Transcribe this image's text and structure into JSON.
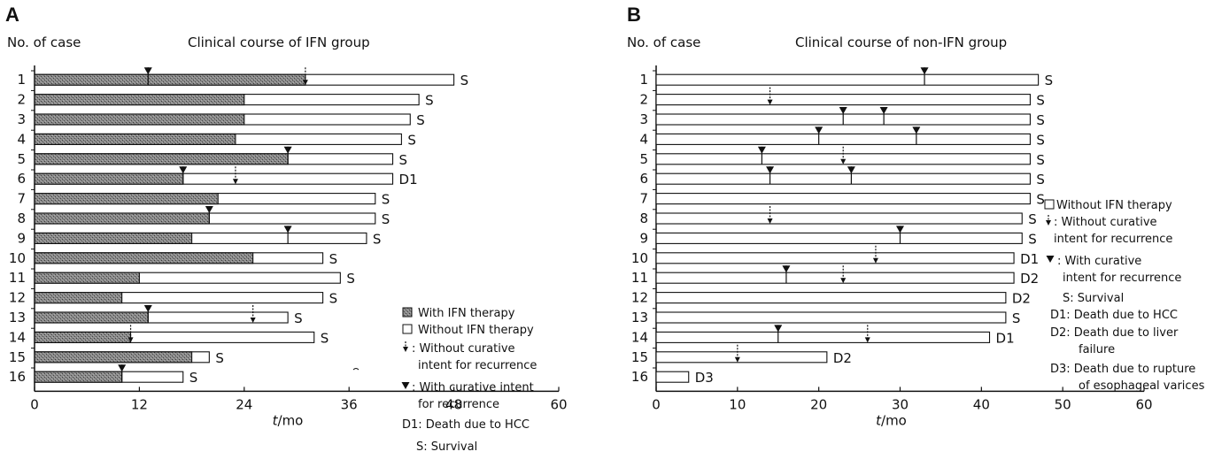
{
  "chart_data": [
    {
      "type": "bar",
      "panel": "A",
      "title": "Clinical course of IFN group",
      "ylabel": "No. of case",
      "xlabel": "t/mo",
      "xlim": [
        0,
        60
      ],
      "xticks": [
        0,
        12,
        24,
        36,
        48,
        60
      ],
      "cases": [
        {
          "label": "1",
          "ifn": 31,
          "total": 48,
          "outcome": "S",
          "without_curative": [
            31
          ],
          "with_curative": [
            13
          ]
        },
        {
          "label": "2",
          "ifn": 24,
          "total": 44,
          "outcome": "S",
          "without_curative": [],
          "with_curative": []
        },
        {
          "label": "3",
          "ifn": 24,
          "total": 43,
          "outcome": "S",
          "without_curative": [],
          "with_curative": []
        },
        {
          "label": "4",
          "ifn": 23,
          "total": 42,
          "outcome": "S",
          "without_curative": [],
          "with_curative": []
        },
        {
          "label": "5",
          "ifn": 29,
          "total": 41,
          "outcome": "S",
          "without_curative": [],
          "with_curative": [
            29
          ]
        },
        {
          "label": "6",
          "ifn": 17,
          "total": 41,
          "outcome": "D1",
          "without_curative": [
            23
          ],
          "with_curative": [
            17
          ]
        },
        {
          "label": "7",
          "ifn": 21,
          "total": 39,
          "outcome": "S",
          "without_curative": [],
          "with_curative": []
        },
        {
          "label": "8",
          "ifn": 20,
          "total": 39,
          "outcome": "S",
          "without_curative": [],
          "with_curative": [
            20
          ]
        },
        {
          "label": "9",
          "ifn": 18,
          "total": 38,
          "outcome": "S",
          "without_curative": [],
          "with_curative": [
            29
          ]
        },
        {
          "label": "10",
          "ifn": 25,
          "total": 33,
          "outcome": "S",
          "without_curative": [],
          "with_curative": []
        },
        {
          "label": "11",
          "ifn": 12,
          "total": 35,
          "outcome": "S",
          "without_curative": [],
          "with_curative": []
        },
        {
          "label": "12",
          "ifn": 10,
          "total": 33,
          "outcome": "S",
          "without_curative": [],
          "with_curative": []
        },
        {
          "label": "13",
          "ifn": 13,
          "total": 29,
          "outcome": "S",
          "without_curative": [
            25
          ],
          "with_curative": [
            13
          ]
        },
        {
          "label": "14",
          "ifn": 11,
          "total": 32,
          "outcome": "S",
          "without_curative": [
            11
          ],
          "with_curative": []
        },
        {
          "label": "15",
          "ifn": 18,
          "total": 20,
          "outcome": "S",
          "without_curative": [],
          "with_curative": []
        },
        {
          "label": "16",
          "ifn": 10,
          "total": 17,
          "outcome": "S",
          "without_curative": [],
          "with_curative": [
            10
          ]
        }
      ],
      "legend": [
        {
          "key": "ifn",
          "text": "With IFN therapy"
        },
        {
          "key": "no_ifn",
          "text": "Without IFN therapy"
        },
        {
          "key": "without_curative",
          "text": ": Without curative",
          "text2": "intent for recurrence"
        },
        {
          "key": "with_curative",
          "text": ": With curative intent",
          "text2": "for recurrence"
        },
        {
          "key": "d1",
          "text": "D1: Death due to HCC"
        },
        {
          "key": "s",
          "text": "S: Survival"
        }
      ]
    },
    {
      "type": "bar",
      "panel": "B",
      "title": "Clinical course of non-IFN group",
      "ylabel": "No. of case",
      "xlabel": "t/mo",
      "xlim": [
        0,
        60
      ],
      "xticks": [
        0,
        10,
        20,
        30,
        40,
        50,
        60
      ],
      "cases": [
        {
          "label": "1",
          "ifn": 0,
          "total": 47,
          "outcome": "S",
          "without_curative": [],
          "with_curative": [
            33
          ]
        },
        {
          "label": "2",
          "ifn": 0,
          "total": 46,
          "outcome": "S",
          "without_curative": [
            14
          ],
          "with_curative": []
        },
        {
          "label": "3",
          "ifn": 0,
          "total": 46,
          "outcome": "S",
          "without_curative": [],
          "with_curative": [
            23,
            28
          ]
        },
        {
          "label": "4",
          "ifn": 0,
          "total": 46,
          "outcome": "S",
          "without_curative": [],
          "with_curative": [
            20,
            32
          ]
        },
        {
          "label": "5",
          "ifn": 0,
          "total": 46,
          "outcome": "S",
          "without_curative": [
            23
          ],
          "with_curative": [
            13
          ]
        },
        {
          "label": "6",
          "ifn": 0,
          "total": 46,
          "outcome": "S",
          "without_curative": [],
          "with_curative": [
            14,
            24
          ]
        },
        {
          "label": "7",
          "ifn": 0,
          "total": 46,
          "outcome": "S",
          "without_curative": [],
          "with_curative": []
        },
        {
          "label": "8",
          "ifn": 0,
          "total": 45,
          "outcome": "S",
          "without_curative": [
            14
          ],
          "with_curative": []
        },
        {
          "label": "9",
          "ifn": 0,
          "total": 45,
          "outcome": "S",
          "without_curative": [],
          "with_curative": [
            30
          ]
        },
        {
          "label": "10",
          "ifn": 0,
          "total": 44,
          "outcome": "D1",
          "without_curative": [
            27
          ],
          "with_curative": []
        },
        {
          "label": "11",
          "ifn": 0,
          "total": 44,
          "outcome": "D2",
          "without_curative": [
            23
          ],
          "with_curative": [
            16
          ]
        },
        {
          "label": "12",
          "ifn": 0,
          "total": 43,
          "outcome": "D2",
          "without_curative": [],
          "with_curative": []
        },
        {
          "label": "13",
          "ifn": 0,
          "total": 43,
          "outcome": "S",
          "without_curative": [],
          "with_curative": []
        },
        {
          "label": "14",
          "ifn": 0,
          "total": 41,
          "outcome": "D1",
          "without_curative": [
            26
          ],
          "with_curative": [
            15
          ]
        },
        {
          "label": "15",
          "ifn": 0,
          "total": 21,
          "outcome": "D2",
          "without_curative": [
            10
          ],
          "with_curative": []
        },
        {
          "label": "16",
          "ifn": 0,
          "total": 4,
          "outcome": "D3",
          "without_curative": [],
          "with_curative": []
        }
      ],
      "legend": [
        {
          "key": "no_ifn",
          "text": "Without IFN therapy"
        },
        {
          "key": "without_curative",
          "text": ": Without curative",
          "text2": "intent for recurrence"
        },
        {
          "key": "with_curative",
          "text": ": With curative",
          "text2": "intent for recurrence"
        },
        {
          "key": "s",
          "text": "S: Survival"
        },
        {
          "key": "d1",
          "text": "D1: Death due to HCC"
        },
        {
          "key": "d2",
          "text": "D2: Death due to liver",
          "text2": "failure"
        },
        {
          "key": "d3",
          "text": "D3: Death due to rupture",
          "text2": "of esophageal varices"
        }
      ]
    }
  ],
  "colors": {
    "ifn_fill": "#6f6f6f",
    "axis": "#111111"
  }
}
